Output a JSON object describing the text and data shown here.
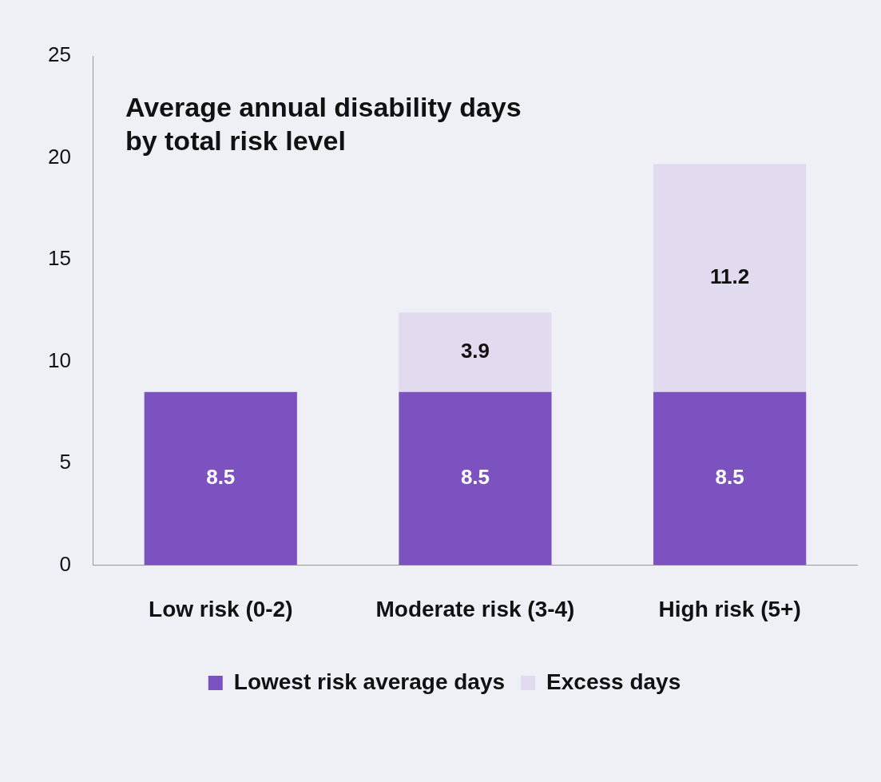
{
  "chart_data": {
    "type": "bar",
    "title": "Average annual disability days\nby total risk level",
    "categories": [
      "Low risk (0-2)",
      "Moderate risk (3-4)",
      "High risk (5+)"
    ],
    "series": [
      {
        "name": "Lowest risk average days",
        "color": "#7b52c0",
        "values": [
          8.5,
          8.5,
          8.5
        ]
      },
      {
        "name": "Excess days",
        "color": "#e2dbef",
        "values": [
          null,
          3.9,
          11.2
        ]
      }
    ],
    "stacked": true,
    "data_labels": true,
    "ylim": [
      0,
      25
    ],
    "yticks": [
      0,
      5,
      10,
      15,
      20,
      25
    ],
    "grid": false,
    "legend": "bottom"
  }
}
